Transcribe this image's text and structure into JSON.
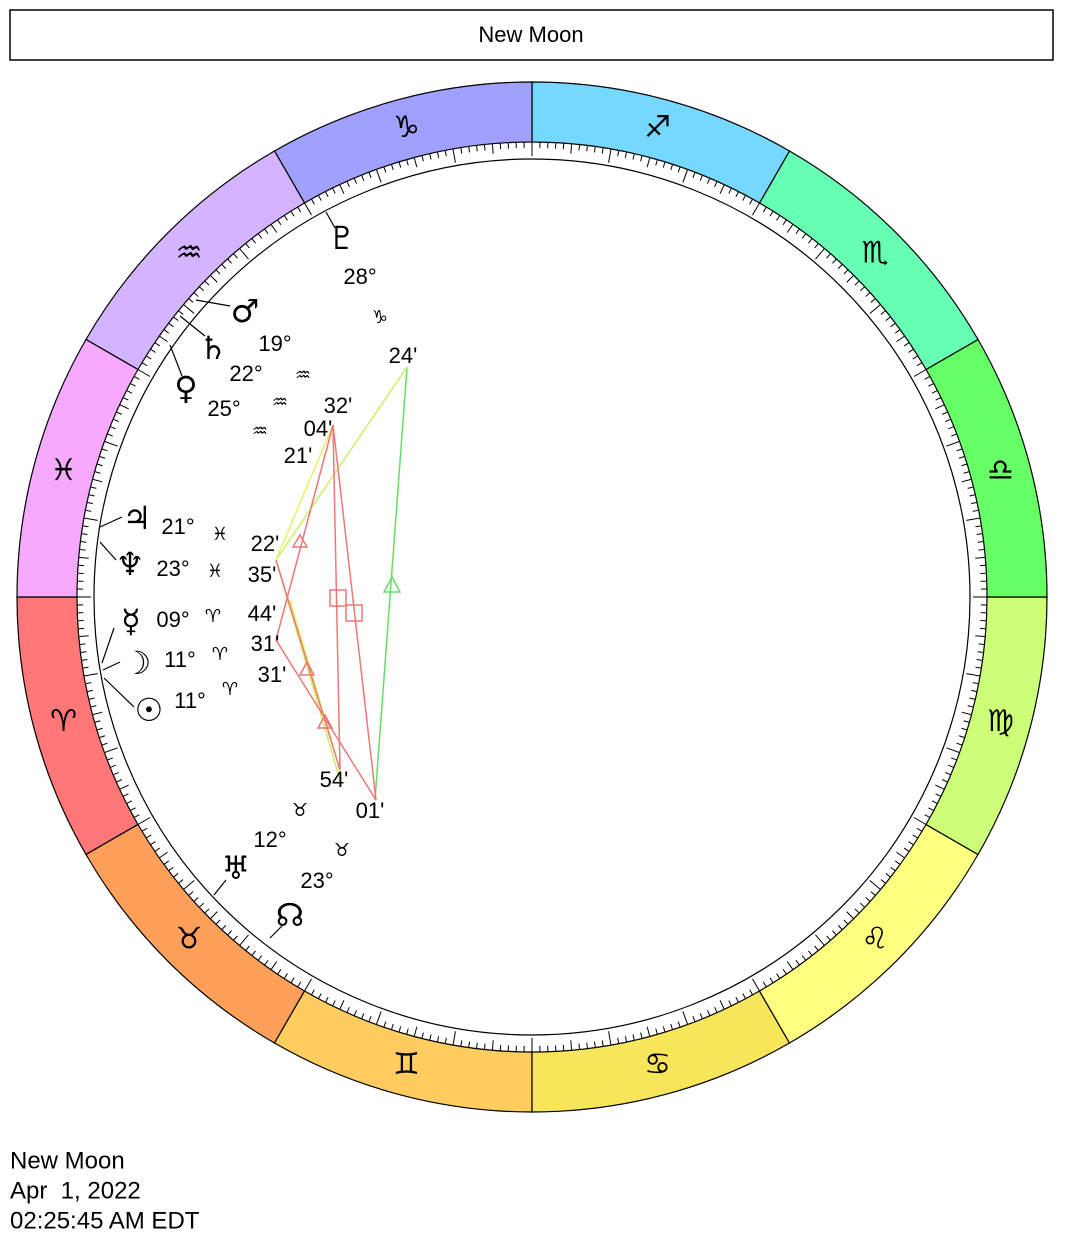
{
  "header": {
    "title": "New Moon"
  },
  "signs": [
    {
      "glyph": "♈",
      "color": "#ff7777"
    },
    {
      "glyph": "♉",
      "color": "#ffa05a"
    },
    {
      "glyph": "♊",
      "color": "#ffcc5f"
    },
    {
      "glyph": "♋",
      "color": "#f8e65a"
    },
    {
      "glyph": "♌",
      "color": "#ffff80"
    },
    {
      "glyph": "♍",
      "color": "#ccff77"
    },
    {
      "glyph": "♎",
      "color": "#66ff66"
    },
    {
      "glyph": "♏",
      "color": "#66ffb3"
    },
    {
      "glyph": "♐",
      "color": "#77d8ff"
    },
    {
      "glyph": "♑",
      "color": "#a0a0ff"
    },
    {
      "glyph": "♒",
      "color": "#d4b3ff"
    },
    {
      "glyph": "♓",
      "color": "#f5aaff"
    }
  ],
  "planets": [
    {
      "glyph": "♇",
      "degree": "28°",
      "sign": "♑",
      "minutes": "24'"
    },
    {
      "glyph": "♂",
      "degree": "19°",
      "sign": "♒",
      "minutes": "32'"
    },
    {
      "glyph": "♄",
      "degree": "22°",
      "sign": "♒",
      "minutes": "04'"
    },
    {
      "glyph": "♀",
      "degree": "25°",
      "sign": "♒",
      "minutes": "21'"
    },
    {
      "glyph": "♃",
      "degree": "21°",
      "sign": "♓",
      "minutes": "22'"
    },
    {
      "glyph": "♆",
      "degree": "23°",
      "sign": "♓",
      "minutes": "35'"
    },
    {
      "glyph": "☿",
      "degree": "09°",
      "sign": "♈",
      "minutes": "44'"
    },
    {
      "glyph": "☽",
      "degree": "11°",
      "sign": "♈",
      "minutes": "31'"
    },
    {
      "glyph": "☉",
      "degree": "11°",
      "sign": "♈",
      "minutes": "31'"
    },
    {
      "glyph": "♅",
      "degree": "12°",
      "sign": "♉",
      "minutes": "54'"
    },
    {
      "glyph": "☊",
      "degree": "23°",
      "sign": "♉",
      "minutes": "01'"
    }
  ],
  "footer": {
    "lines": [
      "New Moon",
      "Apr  1, 2022",
      "02:25:45 AM EDT"
    ]
  }
}
